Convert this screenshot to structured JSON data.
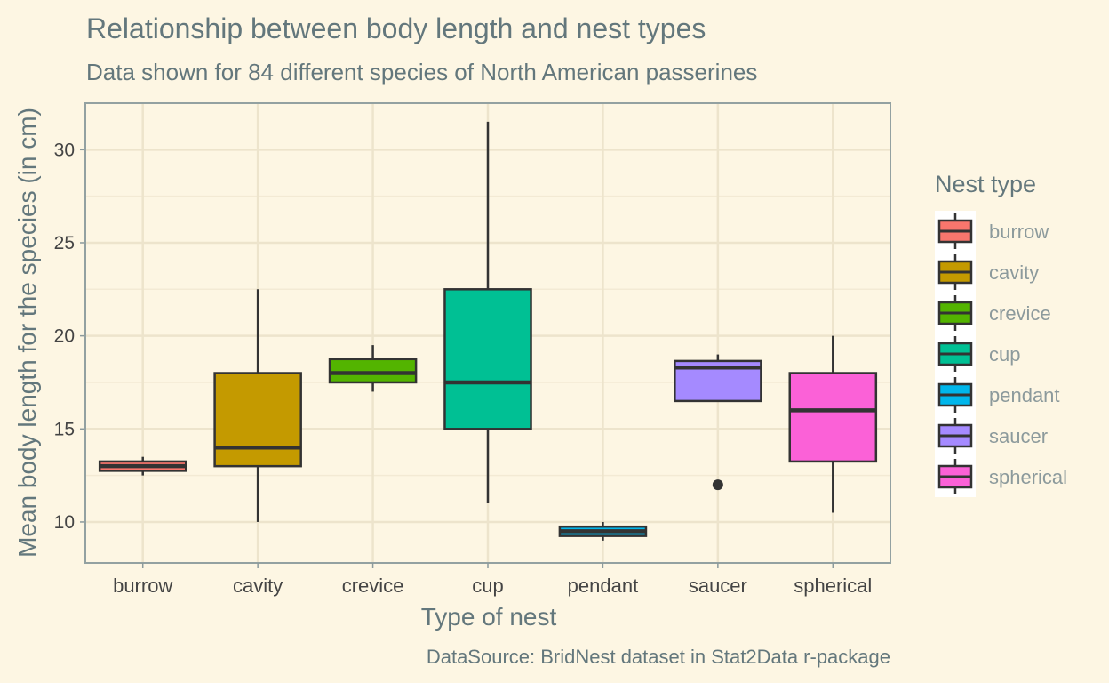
{
  "chart_data": {
    "type": "box",
    "title": "Relationship between body length and nest types",
    "subtitle": "Data shown for 84 different species of North American passerines",
    "xlabel": "Type of nest",
    "ylabel": "Mean body length for the species (in cm)",
    "caption": "DataSource: BridNest dataset in Stat2Data r-package",
    "ylim": [
      7.8,
      32.5
    ],
    "yticks": [
      "10",
      "15",
      "20",
      "25",
      "30"
    ],
    "grid": true,
    "legend": {
      "title": "Nest type",
      "position": "right"
    },
    "categories": [
      "burrow",
      "cavity",
      "crevice",
      "cup",
      "pendant",
      "saucer",
      "spherical"
    ],
    "colors": [
      "#F8766D",
      "#C49A00",
      "#53B400",
      "#00C094",
      "#00B6EB",
      "#A58AFF",
      "#FB61D7"
    ],
    "boxes": [
      {
        "min": 12.5,
        "q1": 12.75,
        "median": 13.0,
        "q3": 13.25,
        "max": 13.5,
        "outliers": []
      },
      {
        "min": 10.0,
        "q1": 13.0,
        "median": 14.0,
        "q3": 18.0,
        "max": 22.5,
        "outliers": []
      },
      {
        "min": 17.0,
        "q1": 17.5,
        "median": 18.0,
        "q3": 18.75,
        "max": 19.5,
        "outliers": []
      },
      {
        "min": 11.0,
        "q1": 15.0,
        "median": 17.5,
        "q3": 22.5,
        "max": 31.5,
        "outliers": []
      },
      {
        "min": 9.0,
        "q1": 9.25,
        "median": 9.5,
        "q3": 9.75,
        "max": 10.0,
        "outliers": []
      },
      {
        "min": 16.5,
        "q1": 16.5,
        "median": 18.3,
        "q3": 18.65,
        "max": 19.0,
        "outliers": [
          12.0
        ]
      },
      {
        "min": 10.5,
        "q1": 13.25,
        "median": 16.0,
        "q3": 18.0,
        "max": 20.0,
        "outliers": []
      }
    ]
  }
}
